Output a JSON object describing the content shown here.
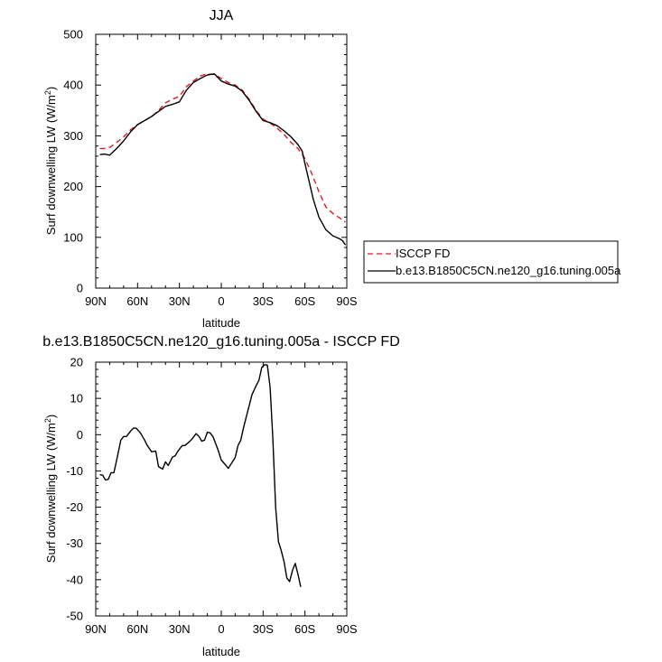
{
  "chart_data": [
    {
      "type": "line",
      "title": "JJA",
      "xlabel": "latitude",
      "ylabel": "Surf downwelling LW (W/m²)",
      "ylabel_main": "Surf downwelling LW (W/m",
      "ylabel_sup": "2",
      "ylabel_tail": ")",
      "xlim": [
        90,
        -90
      ],
      "ylim": [
        0,
        500
      ],
      "x_ticks": [
        90,
        60,
        30,
        0,
        -30,
        -60,
        -90
      ],
      "x_tick_labels": [
        "90N",
        "60N",
        "30N",
        "0",
        "30S",
        "60S",
        "90S"
      ],
      "y_ticks": [
        0,
        100,
        200,
        300,
        400,
        500
      ],
      "y_tick_labels": [
        "0",
        "100",
        "200",
        "300",
        "400",
        "500"
      ],
      "grid": false,
      "legend": "right",
      "series": [
        {
          "name": "ISCCP FD",
          "color": "#e0191b",
          "dash": "dashed",
          "points": [
            [
              87,
              275
            ],
            [
              84,
              275
            ],
            [
              80,
              277
            ],
            [
              75,
              287
            ],
            [
              70,
              298
            ],
            [
              65,
              312
            ],
            [
              60,
              322
            ],
            [
              55,
              330
            ],
            [
              50,
              338
            ],
            [
              45,
              350
            ],
            [
              40,
              365
            ],
            [
              35,
              372
            ],
            [
              30,
              378
            ],
            [
              25,
              397
            ],
            [
              20,
              408
            ],
            [
              15,
              418
            ],
            [
              10,
              422
            ],
            [
              5,
              421
            ],
            [
              0,
              413
            ],
            [
              -5,
              405
            ],
            [
              -10,
              400
            ],
            [
              -15,
              390
            ],
            [
              -20,
              372
            ],
            [
              -25,
              350
            ],
            [
              -30,
              333
            ],
            [
              -35,
              325
            ],
            [
              -40,
              315
            ],
            [
              -45,
              303
            ],
            [
              -50,
              287
            ],
            [
              -55,
              275
            ],
            [
              -60,
              255
            ],
            [
              -65,
              225
            ],
            [
              -70,
              190
            ],
            [
              -75,
              160
            ],
            [
              -80,
              147
            ],
            [
              -85,
              138
            ],
            [
              -89,
              130
            ]
          ]
        },
        {
          "name": "b.e13.B1850C5CN.ne120_g16.tuning.005a",
          "color": "#000000",
          "dash": "solid",
          "points": [
            [
              87,
              263
            ],
            [
              84,
              264
            ],
            [
              80,
              262
            ],
            [
              75,
              275
            ],
            [
              70,
              290
            ],
            [
              65,
              308
            ],
            [
              60,
              322
            ],
            [
              55,
              330
            ],
            [
              50,
              338
            ],
            [
              45,
              348
            ],
            [
              40,
              358
            ],
            [
              35,
              362
            ],
            [
              30,
              367
            ],
            [
              25,
              390
            ],
            [
              20,
              405
            ],
            [
              15,
              413
            ],
            [
              10,
              420
            ],
            [
              5,
              422
            ],
            [
              0,
              408
            ],
            [
              -5,
              402
            ],
            [
              -10,
              398
            ],
            [
              -15,
              388
            ],
            [
              -20,
              370
            ],
            [
              -25,
              348
            ],
            [
              -30,
              330
            ],
            [
              -35,
              326
            ],
            [
              -40,
              320
            ],
            [
              -45,
              310
            ],
            [
              -50,
              298
            ],
            [
              -55,
              283
            ],
            [
              -58,
              270
            ],
            [
              -60,
              245
            ],
            [
              -63,
              210
            ],
            [
              -66,
              175
            ],
            [
              -70,
              140
            ],
            [
              -75,
              115
            ],
            [
              -80,
              103
            ],
            [
              -85,
              97
            ],
            [
              -87,
              93
            ],
            [
              -89,
              85
            ]
          ]
        }
      ]
    },
    {
      "type": "line",
      "title": "b.e13.B1850C5CN.ne120_g16.tuning.005a - ISCCP FD",
      "xlabel": "latitude",
      "ylabel_main": "Surf downwelling LW (W/m",
      "ylabel_sup": "2",
      "ylabel_tail": ")",
      "xlim": [
        90,
        -90
      ],
      "ylim": [
        -50,
        20
      ],
      "x_ticks": [
        90,
        60,
        30,
        0,
        -30,
        -60,
        -90
      ],
      "x_tick_labels": [
        "90N",
        "60N",
        "30N",
        "0",
        "30S",
        "60S",
        "90S"
      ],
      "y_ticks": [
        -50,
        -40,
        -30,
        -20,
        -10,
        0,
        10,
        20
      ],
      "y_tick_labels": [
        "-50",
        "-40",
        "-30",
        "-20",
        "-10",
        "0",
        "10",
        "20"
      ],
      "grid": false,
      "series": [
        {
          "color": "#000000",
          "dash": "solid",
          "points": [
            [
              87,
              -11
            ],
            [
              85,
              -11.2
            ],
            [
              83,
              -12.5
            ],
            [
              81,
              -12.3
            ],
            [
              79,
              -10.5
            ],
            [
              77,
              -10.5
            ],
            [
              75,
              -7
            ],
            [
              72,
              -1.5
            ],
            [
              70,
              -0.5
            ],
            [
              68,
              -0.5
            ],
            [
              65,
              1
            ],
            [
              63,
              1.8
            ],
            [
              61,
              1.8
            ],
            [
              58,
              0.5
            ],
            [
              55,
              -1.5
            ],
            [
              53,
              -3
            ],
            [
              50,
              -4.7
            ],
            [
              47,
              -4.5
            ],
            [
              45,
              -8.8
            ],
            [
              42,
              -9.5
            ],
            [
              40,
              -7.5
            ],
            [
              38,
              -8.5
            ],
            [
              35,
              -6.2
            ],
            [
              33,
              -5.8
            ],
            [
              31,
              -4.5
            ],
            [
              28,
              -3
            ],
            [
              26,
              -3
            ],
            [
              23,
              -2
            ],
            [
              21,
              -1.2
            ],
            [
              18,
              0.3
            ],
            [
              16,
              -0.5
            ],
            [
              14,
              -1.8
            ],
            [
              12,
              -1.5
            ],
            [
              10,
              0.7
            ],
            [
              8,
              0.5
            ],
            [
              6,
              -0.5
            ],
            [
              4,
              -2.5
            ],
            [
              2,
              -4.5
            ],
            [
              0,
              -7
            ],
            [
              -3,
              -8.3
            ],
            [
              -5,
              -9.3
            ],
            [
              -8,
              -7.5
            ],
            [
              -10,
              -6.3
            ],
            [
              -12,
              -3
            ],
            [
              -14,
              -1.5
            ],
            [
              -16,
              2
            ],
            [
              -18,
              5
            ],
            [
              -20,
              8
            ],
            [
              -22,
              11
            ],
            [
              -25,
              13.5
            ],
            [
              -27,
              15
            ],
            [
              -29,
              18.5
            ],
            [
              -31,
              19.3
            ],
            [
              -33,
              19.2
            ],
            [
              -35,
              13
            ],
            [
              -37,
              -1
            ],
            [
              -39,
              -20
            ],
            [
              -41,
              -29.5
            ],
            [
              -43,
              -32
            ],
            [
              -45,
              -35
            ],
            [
              -47,
              -39.5
            ],
            [
              -49,
              -40.5
            ],
            [
              -51,
              -37.5
            ],
            [
              -53,
              -35.5
            ],
            [
              -55,
              -38.5
            ],
            [
              -57,
              -42
            ]
          ]
        }
      ]
    }
  ]
}
